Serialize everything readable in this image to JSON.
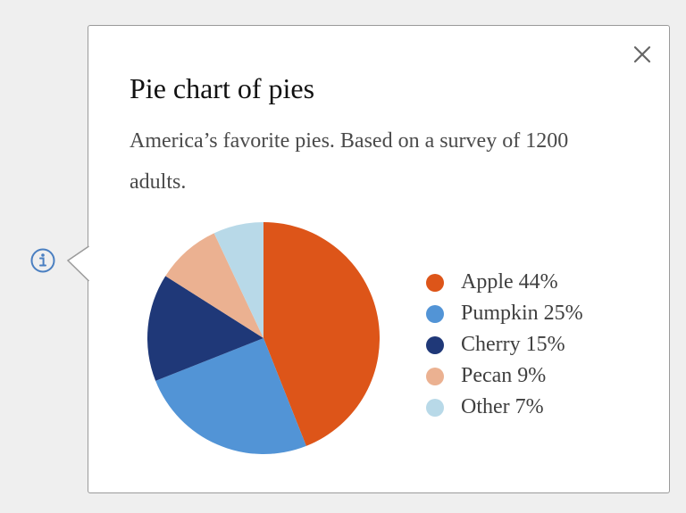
{
  "popover": {
    "title": "Pie chart of pies",
    "description": "America’s favorite pies. Based on a survey of 1200 adults.",
    "close_icon": "close-x-icon"
  },
  "trigger": {
    "icon": "info-circle-icon",
    "color": "#4a7fc1"
  },
  "chart_data": {
    "type": "pie",
    "title": "Pie chart of pies",
    "subtitle": "America’s favorite pies. Based on a survey of 1200 adults.",
    "start_angle": "12 o'clock",
    "direction": "clockwise",
    "legend_placement": "right",
    "slices": [
      {
        "label": "Apple",
        "value": 44,
        "color": "#dd5519",
        "legend": "Apple 44%"
      },
      {
        "label": "Pumpkin",
        "value": 25,
        "color": "#5294d6",
        "legend": "Pumpkin 25%"
      },
      {
        "label": "Cherry",
        "value": 15,
        "color": "#1f3878",
        "legend": "Cherry 15%"
      },
      {
        "label": "Pecan",
        "value": 9,
        "color": "#ebb191",
        "legend": "Pecan 9%"
      },
      {
        "label": "Other",
        "value": 7,
        "color": "#b8d9e8",
        "legend": "Other 7%"
      }
    ]
  }
}
